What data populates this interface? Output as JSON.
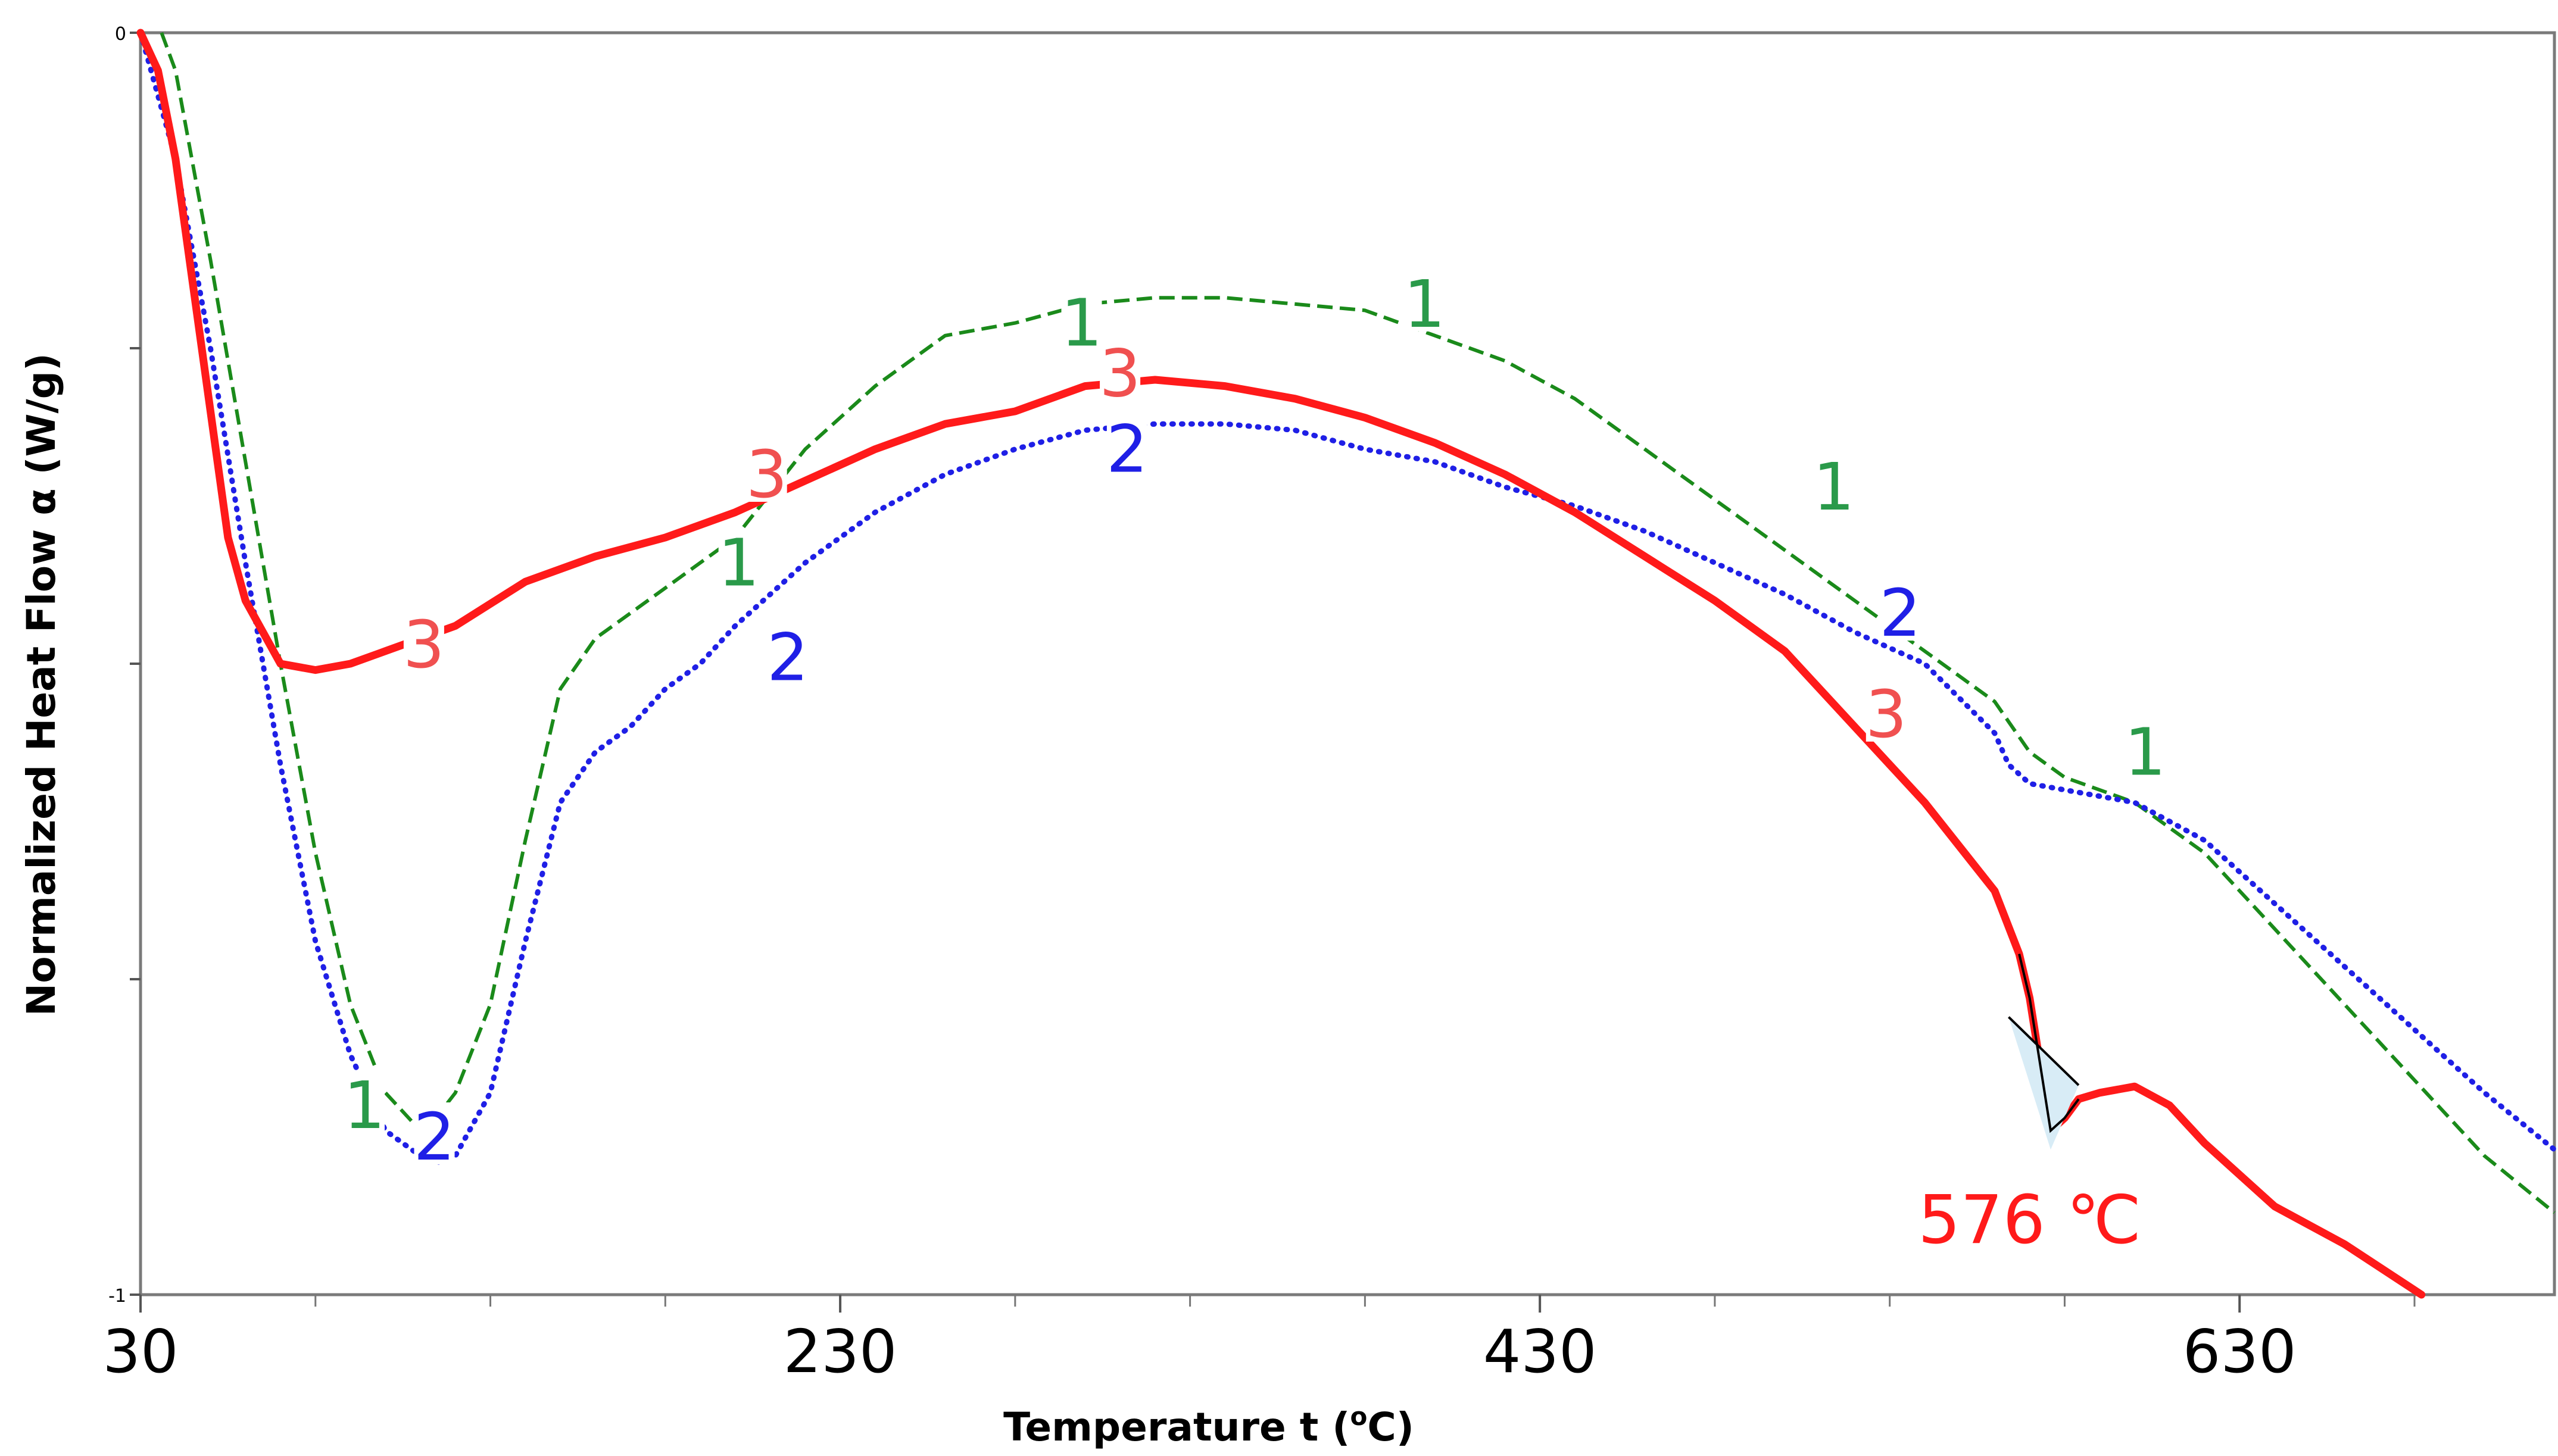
{
  "chart_data": {
    "type": "line",
    "title": "",
    "xlabel": "Temperature t (",
    "xlabel_sup": "o",
    "xlabel_end": "C)",
    "ylabel": "Normalized Heat Flow α (W/g)",
    "xlim": [
      30,
      720
    ],
    "ylim": [
      -1,
      0
    ],
    "x_major_ticks": [
      30,
      230,
      430,
      630
    ],
    "x_major_tick_labels": [
      "30",
      "230",
      "430",
      "630"
    ],
    "x_minor_ticks": [
      80,
      130,
      180,
      280,
      330,
      380,
      480,
      530,
      580,
      680
    ],
    "y_ticks": [
      0,
      -0.25,
      -0.5,
      -0.75,
      -1
    ],
    "y_tick_labels": [
      "0",
      "-1"
    ],
    "series": [
      {
        "name": "1",
        "color": "#1a8a1a",
        "style": "dashed",
        "x": [
          36,
          40,
          50,
          60,
          70,
          80,
          90,
          100,
          110,
          113,
          120,
          130,
          140,
          150,
          160,
          180,
          200,
          220,
          240,
          260,
          280,
          300,
          320,
          340,
          360,
          380,
          400,
          420,
          440,
          460,
          480,
          500,
          520,
          540,
          560,
          570,
          580,
          600,
          620,
          640,
          660,
          680,
          700,
          720
        ],
        "y": [
          0.0,
          -0.03,
          -0.18,
          -0.34,
          -0.5,
          -0.65,
          -0.77,
          -0.84,
          -0.87,
          -0.865,
          -0.84,
          -0.77,
          -0.64,
          -0.52,
          -0.48,
          -0.44,
          -0.4,
          -0.33,
          -0.28,
          -0.24,
          -0.23,
          -0.215,
          -0.21,
          -0.21,
          -0.215,
          -0.22,
          -0.24,
          -0.26,
          -0.29,
          -0.33,
          -0.37,
          -0.41,
          -0.45,
          -0.49,
          -0.53,
          -0.57,
          -0.59,
          -0.61,
          -0.65,
          -0.71,
          -0.77,
          -0.83,
          -0.89,
          -0.935
        ]
      },
      {
        "name": "2",
        "color": "#1f1fe6",
        "style": "dotted",
        "x": [
          30,
          40,
          50,
          60,
          70,
          80,
          90,
          100,
          110,
          115,
          120,
          130,
          140,
          150,
          160,
          170,
          180,
          190,
          200,
          220,
          240,
          260,
          280,
          300,
          320,
          340,
          360,
          380,
          400,
          420,
          440,
          460,
          480,
          500,
          520,
          540,
          560,
          564,
          570,
          580,
          600,
          620,
          640,
          660,
          680,
          700,
          720
        ],
        "y": [
          0.0,
          -0.1,
          -0.25,
          -0.42,
          -0.58,
          -0.72,
          -0.81,
          -0.87,
          -0.89,
          -0.895,
          -0.89,
          -0.84,
          -0.72,
          -0.61,
          -0.57,
          -0.55,
          -0.52,
          -0.5,
          -0.47,
          -0.42,
          -0.38,
          -0.35,
          -0.33,
          -0.315,
          -0.31,
          -0.31,
          -0.315,
          -0.33,
          -0.34,
          -0.36,
          -0.375,
          -0.395,
          -0.42,
          -0.445,
          -0.475,
          -0.5,
          -0.555,
          -0.58,
          -0.595,
          -0.6,
          -0.61,
          -0.64,
          -0.69,
          -0.74,
          -0.79,
          -0.84,
          -0.885
        ]
      },
      {
        "name": "3",
        "color": "#ff1a1a",
        "style": "solid",
        "x": [
          30,
          35,
          40,
          50,
          55,
          60,
          70,
          80,
          90,
          100,
          120,
          140,
          160,
          180,
          200,
          220,
          240,
          260,
          280,
          300,
          320,
          340,
          360,
          380,
          400,
          420,
          440,
          460,
          480,
          500,
          520,
          540,
          560,
          567,
          570,
          576,
          580,
          584,
          590,
          600,
          610,
          620,
          640,
          660,
          682
        ],
        "y": [
          0.0,
          -0.03,
          -0.1,
          -0.3,
          -0.4,
          -0.45,
          -0.5,
          -0.505,
          -0.5,
          -0.49,
          -0.47,
          -0.435,
          -0.415,
          -0.4,
          -0.38,
          -0.355,
          -0.33,
          -0.31,
          -0.3,
          -0.28,
          -0.275,
          -0.28,
          -0.29,
          -0.305,
          -0.325,
          -0.35,
          -0.38,
          -0.415,
          -0.45,
          -0.49,
          -0.55,
          -0.61,
          -0.68,
          -0.73,
          -0.765,
          -0.87,
          -0.86,
          -0.845,
          -0.84,
          -0.835,
          -0.85,
          -0.88,
          -0.93,
          -0.96,
          -1.0
        ]
      }
    ],
    "curve_labels": [
      {
        "text": "1",
        "series": "1",
        "x": 94,
        "y": -0.85
      },
      {
        "text": "1",
        "series": "1",
        "x": 201,
        "y": -0.42
      },
      {
        "text": "1",
        "series": "1",
        "x": 299,
        "y": -0.23
      },
      {
        "text": "1",
        "series": "1",
        "x": 397,
        "y": -0.215
      },
      {
        "text": "1",
        "series": "1",
        "x": 514,
        "y": -0.36
      },
      {
        "text": "1",
        "series": "1",
        "x": 603,
        "y": -0.57
      },
      {
        "text": "2",
        "series": "2",
        "x": 114,
        "y": -0.875
      },
      {
        "text": "2",
        "series": "2",
        "x": 215,
        "y": -0.495
      },
      {
        "text": "2",
        "series": "2",
        "x": 312,
        "y": -0.33
      },
      {
        "text": "2",
        "series": "2",
        "x": 533,
        "y": -0.46
      },
      {
        "text": "3",
        "series": "3",
        "x": 111,
        "y": -0.485
      },
      {
        "text": "3",
        "series": "3",
        "x": 209,
        "y": -0.35
      },
      {
        "text": "3",
        "series": "3",
        "x": 310,
        "y": -0.27
      },
      {
        "text": "3",
        "series": "3",
        "x": 529,
        "y": -0.54
      }
    ],
    "annotations": [
      {
        "text": "576 ℃",
        "color": "#ff1a1a",
        "x": 570,
        "y": -0.94
      },
      {
        "text": "peak-area-shading",
        "x1": 564,
        "y1": -0.78,
        "x2": 576,
        "y2": -0.885,
        "x3": 584,
        "y3": -0.834
      }
    ]
  }
}
